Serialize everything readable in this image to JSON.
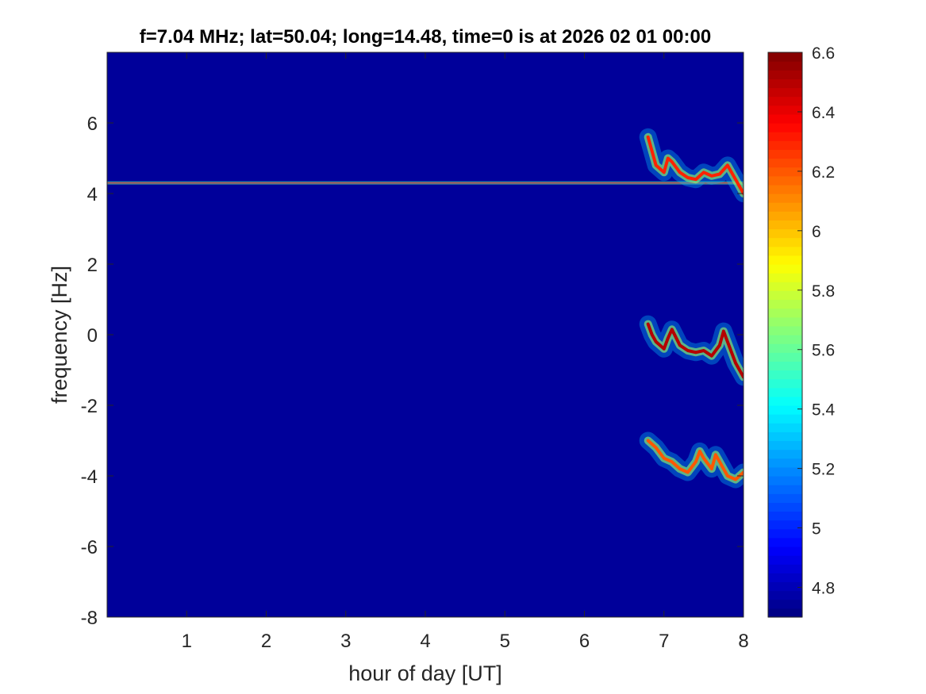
{
  "chart_data": {
    "type": "heatmap",
    "title": "f=7.04 MHz;  lat=50.04; long=14.48, time=0 is at 2026 02 01 00:00",
    "xlabel": "hour of day [UT]",
    "ylabel": "frequency [Hz]",
    "xlim": [
      0,
      8
    ],
    "ylim": [
      -8,
      8
    ],
    "xticks": [
      1,
      2,
      3,
      4,
      5,
      6,
      7,
      8
    ],
    "yticks": [
      -8,
      -6,
      -4,
      -2,
      0,
      2,
      4,
      6
    ],
    "colormap": "jet",
    "clim": [
      4.7,
      6.6
    ],
    "colorbar_ticks": [
      4.8,
      5,
      5.2,
      5.4,
      5.6,
      5.8,
      6,
      6.2,
      6.4,
      6.6
    ],
    "background_value": 4.75,
    "grid": false,
    "features": [
      {
        "name": "carrier line",
        "x": [
          0,
          8
        ],
        "y": [
          4.3,
          4.3
        ],
        "value": 5.6
      },
      {
        "name": "upper trace",
        "x": [
          6.8,
          6.9,
          7.0,
          7.05,
          7.1,
          7.2,
          7.3,
          7.4,
          7.5,
          7.6,
          7.7,
          7.8,
          7.9,
          8.0
        ],
        "y": [
          5.6,
          4.8,
          4.6,
          5.0,
          4.9,
          4.6,
          4.45,
          4.4,
          4.6,
          4.5,
          4.55,
          4.8,
          4.4,
          4.0
        ],
        "value": 6.3
      },
      {
        "name": "middle trace",
        "x": [
          6.8,
          6.85,
          6.9,
          7.0,
          7.05,
          7.1,
          7.2,
          7.3,
          7.4,
          7.5,
          7.6,
          7.7,
          7.75,
          7.8,
          7.9,
          8.0
        ],
        "y": [
          0.3,
          0.0,
          -0.2,
          -0.4,
          -0.1,
          0.15,
          -0.3,
          -0.45,
          -0.5,
          -0.45,
          -0.6,
          -0.3,
          0.1,
          -0.2,
          -0.8,
          -1.2
        ],
        "value": 6.5
      },
      {
        "name": "lower trace",
        "x": [
          6.8,
          6.9,
          7.0,
          7.1,
          7.2,
          7.3,
          7.4,
          7.45,
          7.5,
          7.6,
          7.65,
          7.7,
          7.8,
          7.9,
          8.0
        ],
        "y": [
          -3.0,
          -3.2,
          -3.5,
          -3.6,
          -3.8,
          -3.9,
          -3.6,
          -3.3,
          -3.5,
          -3.8,
          -3.4,
          -3.6,
          -4.0,
          -4.1,
          -3.9
        ],
        "value": 6.2
      }
    ]
  }
}
